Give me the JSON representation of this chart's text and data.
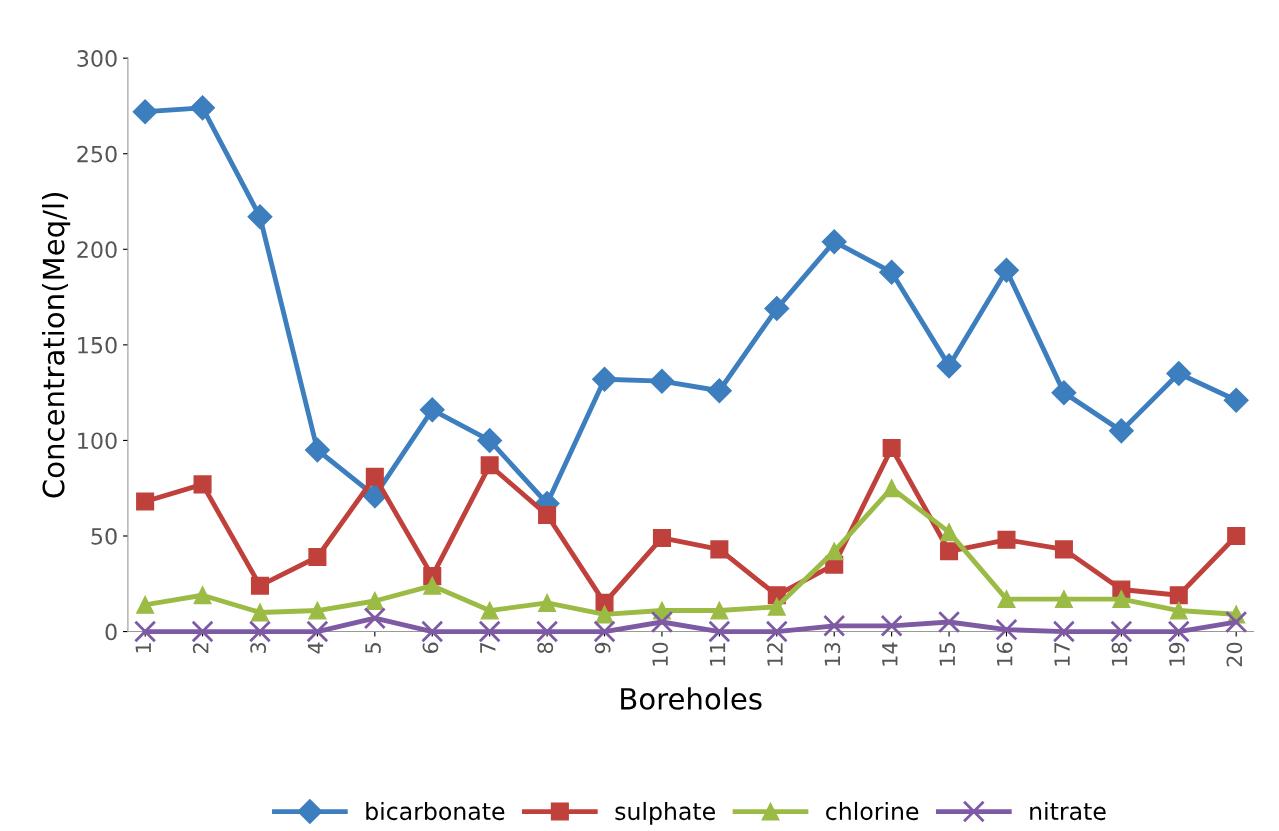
{
  "chart_data": {
    "type": "line",
    "xlabel": "Boreholes",
    "ylabel": "Concentration(Meq/l)",
    "categories": [
      "1",
      "2",
      "3",
      "4",
      "5",
      "6",
      "7",
      "8",
      "9",
      "10",
      "11",
      "12",
      "13",
      "14",
      "15",
      "16",
      "17",
      "18",
      "19",
      "20"
    ],
    "ylim": [
      0,
      300
    ],
    "yticks": [
      0,
      50,
      100,
      150,
      200,
      250,
      300
    ],
    "grid": false,
    "legend": "bottom",
    "line_style": "solid",
    "series": [
      {
        "name": "bicarbonate",
        "color": "#3d7ebf",
        "marker": "diamond",
        "values": [
          272,
          274,
          217,
          95,
          71,
          116,
          100,
          67,
          132,
          131,
          126,
          169,
          204,
          188,
          139,
          189,
          125,
          105,
          135,
          121
        ]
      },
      {
        "name": "sulphate",
        "color": "#c0413b",
        "marker": "square",
        "values": [
          68,
          77,
          24,
          39,
          81,
          29,
          87,
          61,
          15,
          49,
          43,
          19,
          35,
          96,
          42,
          48,
          43,
          22,
          19,
          50
        ]
      },
      {
        "name": "chlorine",
        "color": "#9bbb45",
        "marker": "triangle",
        "values": [
          14,
          19,
          10,
          11,
          16,
          24,
          11,
          15,
          9,
          11,
          11,
          13,
          42,
          75,
          52,
          17,
          17,
          17,
          11,
          9
        ]
      },
      {
        "name": "nitrate",
        "color": "#7d5aa3",
        "marker": "cross",
        "values": [
          0,
          0,
          0,
          0,
          7,
          0,
          0,
          0,
          0,
          5,
          0,
          0,
          3,
          3,
          5,
          1,
          0,
          0,
          0,
          5
        ]
      }
    ]
  }
}
